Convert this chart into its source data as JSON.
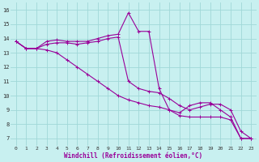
{
  "xlabel": "Windchill (Refroidissement éolien,°C)",
  "bg_color": "#c8f0f0",
  "grid_color": "#a0d8d8",
  "line_color": "#990099",
  "xlim": [
    -0.5,
    23.5
  ],
  "ylim": [
    6.5,
    16.5
  ],
  "xticks": [
    0,
    1,
    2,
    3,
    4,
    5,
    6,
    7,
    8,
    9,
    10,
    11,
    12,
    13,
    14,
    15,
    16,
    17,
    18,
    19,
    20,
    21,
    22,
    23
  ],
  "yticks": [
    7,
    8,
    9,
    10,
    11,
    12,
    13,
    14,
    15,
    16
  ],
  "lines": [
    [
      13.8,
      13.3,
      13.3,
      13.8,
      13.9,
      13.8,
      13.8,
      13.8,
      14.0,
      14.2,
      14.3,
      15.8,
      14.5,
      14.5,
      10.5,
      9.0,
      8.8,
      9.3,
      9.5,
      9.5,
      9.0,
      8.5,
      7.0,
      7.0
    ],
    [
      13.8,
      13.3,
      13.3,
      13.2,
      13.0,
      12.5,
      12.0,
      11.5,
      11.0,
      10.5,
      10.0,
      9.7,
      9.5,
      9.3,
      9.2,
      9.0,
      8.6,
      8.5,
      8.5,
      8.5,
      8.5,
      8.3,
      7.0,
      7.0
    ],
    [
      13.8,
      13.3,
      13.3,
      13.6,
      13.7,
      13.7,
      13.6,
      13.7,
      13.8,
      14.0,
      14.1,
      11.0,
      10.5,
      10.3,
      10.2,
      9.8,
      9.3,
      9.0,
      9.2,
      9.4,
      9.4,
      9.0,
      7.5,
      7.0
    ]
  ]
}
